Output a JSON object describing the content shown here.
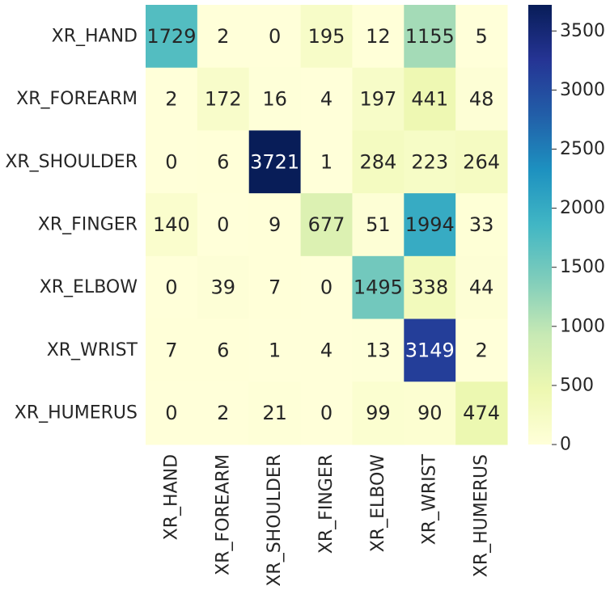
{
  "chart_data": {
    "type": "heatmap",
    "title": "",
    "xlabel": "",
    "ylabel": "",
    "row_labels": [
      "XR_HAND",
      "XR_FOREARM",
      "XR_SHOULDER",
      "XR_FINGER",
      "XR_ELBOW",
      "XR_WRIST",
      "XR_HUMERUS"
    ],
    "col_labels": [
      "XR_HAND",
      "XR_FOREARM",
      "XR_SHOULDER",
      "XR_FINGER",
      "XR_ELBOW",
      "XR_WRIST",
      "XR_HUMERUS"
    ],
    "values": [
      [
        1729,
        2,
        0,
        195,
        12,
        1155,
        5
      ],
      [
        2,
        172,
        16,
        4,
        197,
        441,
        48
      ],
      [
        0,
        6,
        3721,
        1,
        284,
        223,
        264
      ],
      [
        140,
        0,
        9,
        677,
        51,
        1994,
        33
      ],
      [
        0,
        39,
        7,
        0,
        1495,
        338,
        44
      ],
      [
        7,
        6,
        1,
        4,
        13,
        3149,
        2
      ],
      [
        0,
        2,
        21,
        0,
        99,
        90,
        474
      ]
    ],
    "colormap": "YlGnBu",
    "color_range": [
      0,
      3721
    ],
    "colorbar_ticks": [
      0,
      500,
      1000,
      1500,
      2000,
      2500,
      3000,
      3500
    ],
    "colorbar_position": "right",
    "grid": false
  }
}
